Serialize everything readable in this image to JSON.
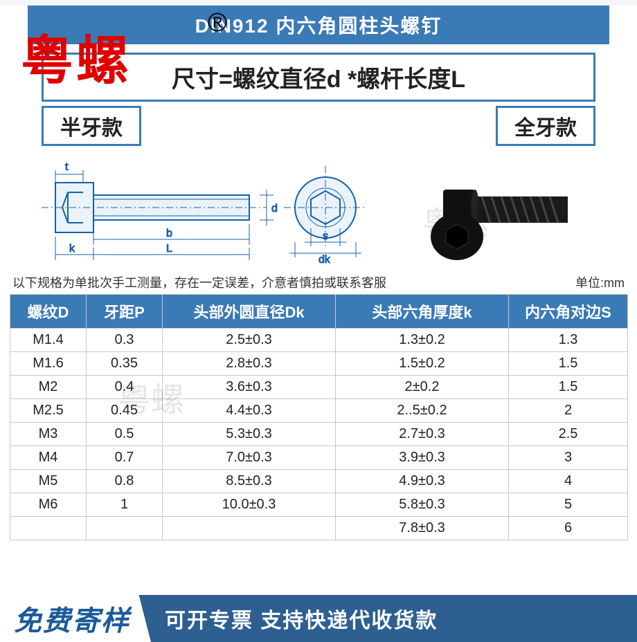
{
  "title": "DIN912 内六角圆柱头螺钉",
  "brand_watermark": "粤螺",
  "registered_mark": "®",
  "formula": "尺寸=螺纹直径d *螺杆长度L",
  "type_left": "半牙款",
  "type_right": "全牙款",
  "dim_labels": {
    "t": "t",
    "d": "d",
    "b": "b",
    "k": "k",
    "L": "L",
    "s": "s",
    "dk": "dk"
  },
  "note_left": "以下规格为单批次手工测量，存在一定误差，介意者慎拍或联系客服",
  "note_right": "单位:mm",
  "columns": [
    "螺纹D",
    "牙距P",
    "头部外圆直径Dk",
    "头部六角厚度k",
    "内六角对边S"
  ],
  "col_widths": [
    "110px",
    "110px",
    "250px",
    "250px",
    "172px"
  ],
  "rows": [
    [
      "M1.4",
      "0.3",
      "2.5±0.3",
      "1.3±0.2",
      "1.3"
    ],
    [
      "M1.6",
      "0.35",
      "2.8±0.3",
      "1.5±0.2",
      "1.5"
    ],
    [
      "M2",
      "0.4",
      "3.6±0.3",
      "2±0.2",
      "1.5"
    ],
    [
      "M2.5",
      "0.45",
      "4.4±0.3",
      "2..5±0.2",
      "2"
    ],
    [
      "M3",
      "0.5",
      "5.3±0.3",
      "2.7±0.3",
      "2.5"
    ],
    [
      "M4",
      "0.7",
      "7.0±0.3",
      "3.9±0.3",
      "3"
    ],
    [
      "M5",
      "0.8",
      "8.5±0.3",
      "4.9±0.3",
      "4"
    ],
    [
      "M6",
      "1",
      "10.0±0.3",
      "5.8±0.3",
      "5"
    ],
    [
      "",
      "",
      "",
      "7.8±0.3",
      "6"
    ]
  ],
  "footer_left": "免费寄样",
  "footer_right": "可开专票 支持快递代收货款",
  "colors": {
    "primary": "#3a7ab5",
    "header_blue": "#3a7ab5",
    "footer_blue": "#2d5f91",
    "brand_red": "#e00000",
    "border_gray": "#c8c8c8",
    "bg": "#ffffff"
  }
}
